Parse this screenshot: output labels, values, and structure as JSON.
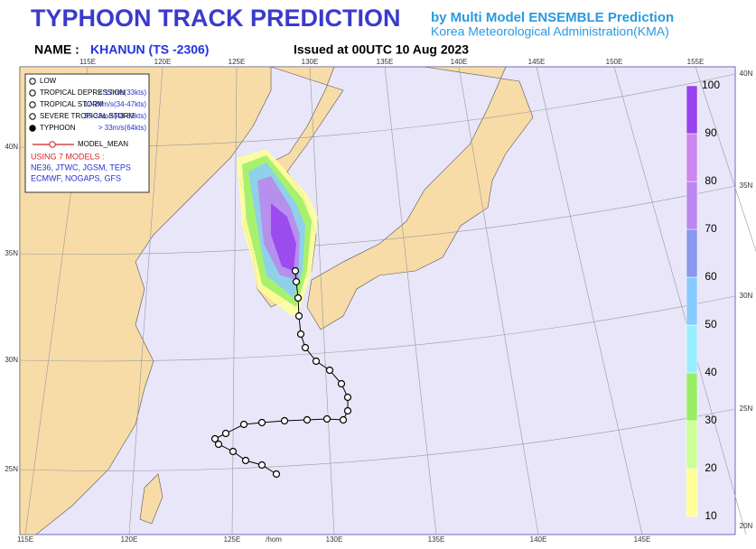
{
  "header": {
    "title": "TYPHOON TRACK PREDICTION",
    "subtitle_1": "by Multi Model ENSEMBLE Prediction",
    "subtitle_2": "Korea Meteorological Administration(KMA)",
    "name_label": "NAME :",
    "name": "KHANUN (TS -2306)",
    "issued": "Issued at 00UTC 10 Aug 2023"
  },
  "legend": {
    "entries": [
      {
        "label": "LOW"
      },
      {
        "label": "TROPICAL DEPRESSION",
        "range": "< 17m/s(33kts)"
      },
      {
        "label": "TROPICAL STORM",
        "range": "17-24m/s(34-47kts)"
      },
      {
        "label": "SEVERE TROPICAL STORM",
        "range": "25-32m/s(48-63kts)"
      },
      {
        "label": "TYPHOON",
        "range": "> 33m/s(64kts)"
      }
    ],
    "mean_label": "MODEL_MEAN",
    "models_title": "USING 7 MODELS :",
    "models": [
      "NE36, JTWC, JGSM, TEPS",
      "ECMWF, NOGAPS, GFS"
    ]
  },
  "axes": {
    "top": [
      "115E",
      "120E",
      "125E",
      "130E",
      "135E",
      "140E",
      "145E",
      "150E",
      "155E"
    ],
    "bottom": [
      "115E",
      "120E",
      "125E",
      "/hom",
      "130E",
      "135E",
      "140E",
      "145E"
    ],
    "left": [
      "40N",
      "35N",
      "30N",
      "25N"
    ],
    "right": [
      "40N",
      "35N",
      "30N",
      "25N",
      "20N"
    ]
  },
  "colorbar": {
    "ticks": [
      10,
      20,
      30,
      40,
      50,
      60,
      70,
      80,
      90,
      100
    ],
    "colors": [
      "#ffff99",
      "#ccff99",
      "#99ee66",
      "#99eeff",
      "#88ccff",
      "#8899ee",
      "#bb88ee",
      "#cc88ee",
      "#9944ee"
    ]
  }
}
